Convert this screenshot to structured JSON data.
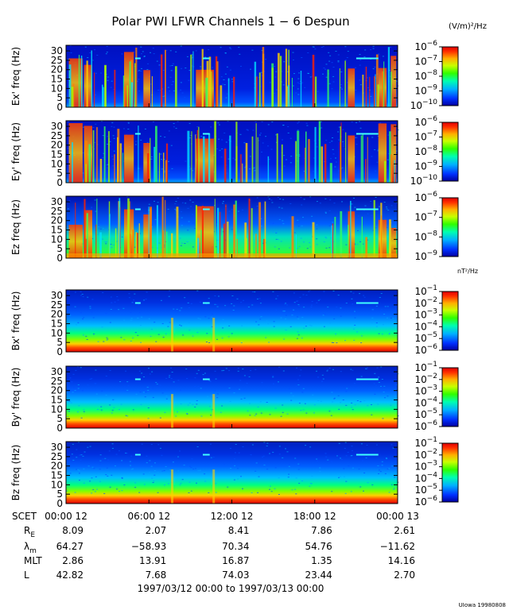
{
  "chart_data": {
    "type": "heatmap",
    "title": "Polar PWI LFWR Channels 1 − 6 Despun",
    "x_range_hours": [
      0,
      24
    ],
    "x_ticks": [
      {
        "hour": 0,
        "label": "00:00 12"
      },
      {
        "hour": 6,
        "label": "06:00 12"
      },
      {
        "hour": 12,
        "label": "12:00 12"
      },
      {
        "hour": 18,
        "label": "18:00 12"
      },
      {
        "hour": 24,
        "label": "00:00 13"
      }
    ],
    "y_range": [
      0,
      33
    ],
    "y_ticks": [
      0,
      5,
      10,
      15,
      20,
      25,
      30
    ],
    "electric_unit": "(V/m)²/Hz",
    "magnetic_unit": "nT²/Hz",
    "panels": [
      {
        "ylabel": "Ex' freq (Hz)",
        "field": "electric",
        "colorbar_exponents": [
          -10,
          -9,
          -8,
          -7,
          -6
        ]
      },
      {
        "ylabel": "Ey' freq (Hz)",
        "field": "electric",
        "colorbar_exponents": [
          -10,
          -9,
          -8,
          -7,
          -6
        ]
      },
      {
        "ylabel": "Ez freq (Hz)",
        "field": "electric",
        "colorbar_exponents": [
          -9,
          -8,
          -7,
          -6
        ]
      },
      {
        "ylabel": "Bx' freq (Hz)",
        "field": "magnetic",
        "colorbar_exponents": [
          -6,
          -5,
          -4,
          -3,
          -2,
          -1
        ]
      },
      {
        "ylabel": "By' freq (Hz)",
        "field": "magnetic",
        "colorbar_exponents": [
          -6,
          -5,
          -4,
          -3,
          -2,
          -1
        ]
      },
      {
        "ylabel": "Bz freq (Hz)",
        "field": "magnetic",
        "colorbar_exponents": [
          -6,
          -5,
          -4,
          -3,
          -2,
          -1
        ]
      }
    ],
    "ephemeris": {
      "label": "SCET",
      "rows": [
        {
          "name": "R",
          "sub": "E",
          "values": [
            "8.09",
            "2.07",
            "8.41",
            "7.86",
            "2.61"
          ]
        },
        {
          "name": "λ",
          "sub": "m",
          "values": [
            "64.27",
            "−58.93",
            "70.34",
            "54.76",
            "−11.62"
          ]
        },
        {
          "name": "MLT",
          "sub": "",
          "values": [
            "2.86",
            "13.91",
            "16.87",
            "1.35",
            "14.16"
          ]
        },
        {
          "name": "L",
          "sub": "",
          "values": [
            "42.82",
            "7.68",
            "74.03",
            "23.44",
            "2.70"
          ]
        }
      ]
    },
    "date_range": "1997/03/12 00:00 to 1997/03/13 00:00",
    "footer": "UIowa 19980808"
  }
}
